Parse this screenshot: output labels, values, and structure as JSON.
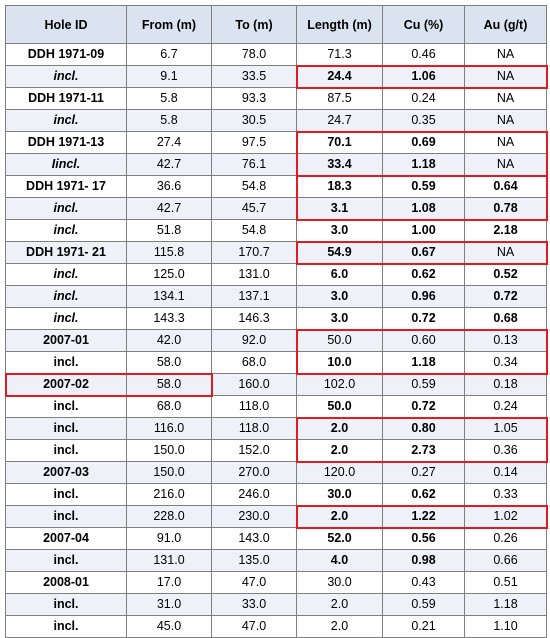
{
  "headers": [
    "Hole ID",
    "From (m)",
    "To (m)",
    "Length (m)",
    "Cu (%)",
    "Au (g/t)"
  ],
  "rows": [
    {
      "hole": "DDH 1971-09",
      "from": "6.7",
      "to": "78.0",
      "length": "71.3",
      "cu": "0.46",
      "au": "NA"
    },
    {
      "hole": "incl.",
      "from": "9.1",
      "to": "33.5",
      "length": "24.4",
      "cu": "1.06",
      "au": "NA"
    },
    {
      "hole": "DDH 1971-11",
      "from": "5.8",
      "to": "93.3",
      "length": "87.5",
      "cu": "0.24",
      "au": "NA"
    },
    {
      "hole": "incl.",
      "from": "5.8",
      "to": "30.5",
      "length": "24.7",
      "cu": "0.35",
      "au": "NA"
    },
    {
      "hole": "DDH 1971-13",
      "from": "27.4",
      "to": "97.5",
      "length": "70.1",
      "cu": "0.69",
      "au": "NA"
    },
    {
      "hole": "Iincl.",
      "from": "42.7",
      "to": "76.1",
      "length": "33.4",
      "cu": "1.18",
      "au": "NA"
    },
    {
      "hole": "DDH 1971- 17",
      "from": "36.6",
      "to": "54.8",
      "length": "18.3",
      "cu": "0.59",
      "au": "0.64"
    },
    {
      "hole": "incl.",
      "from": "42.7",
      "to": "45.7",
      "length": "3.1",
      "cu": "1.08",
      "au": "0.78"
    },
    {
      "hole": "incl.",
      "from": "51.8",
      "to": "54.8",
      "length": "3.0",
      "cu": "1.00",
      "au": "2.18"
    },
    {
      "hole": "DDH 1971- 21",
      "from": "115.8",
      "to": "170.7",
      "length": "54.9",
      "cu": "0.67",
      "au": "NA"
    },
    {
      "hole": "incl.",
      "from": "125.0",
      "to": "131.0",
      "length": "6.0",
      "cu": "0.62",
      "au": "0.52"
    },
    {
      "hole": "incl.",
      "from": "134.1",
      "to": "137.1",
      "length": "3.0",
      "cu": "0.96",
      "au": "0.72"
    },
    {
      "hole": "incl.",
      "from": "143.3",
      "to": "146.3",
      "length": "3.0",
      "cu": "0.72",
      "au": "0.68"
    },
    {
      "hole": "2007-01",
      "from": "42.0",
      "to": "92.0",
      "length": "50.0",
      "cu": "0.60",
      "au": "0.13"
    },
    {
      "hole": "incl.",
      "from": "58.0",
      "to": "68.0",
      "length": "10.0",
      "cu": "1.18",
      "au": "0.34"
    },
    {
      "hole": "2007-02",
      "from": "58.0",
      "to": "160.0",
      "length": "102.0",
      "cu": "0.59",
      "au": "0.18"
    },
    {
      "hole": "incl.",
      "from": "68.0",
      "to": "118.0",
      "length": "50.0",
      "cu": "0.72",
      "au": "0.24"
    },
    {
      "hole": "incl.",
      "from": "116.0",
      "to": "118.0",
      "length": "2.0",
      "cu": "0.80",
      "au": "1.05"
    },
    {
      "hole": "incl.",
      "from": "150.0",
      "to": "152.0",
      "length": "2.0",
      "cu": "2.73",
      "au": "0.36"
    },
    {
      "hole": "2007-03",
      "from": "150.0",
      "to": "270.0",
      "length": "120.0",
      "cu": "0.27",
      "au": "0.14"
    },
    {
      "hole": "incl.",
      "from": "216.0",
      "to": "246.0",
      "length": "30.0",
      "cu": "0.62",
      "au": "0.33"
    },
    {
      "hole": "incl.",
      "from": "228.0",
      "to": "230.0",
      "length": "2.0",
      "cu": "1.22",
      "au": "1.02"
    },
    {
      "hole": "2007-04",
      "from": "91.0",
      "to": "143.0",
      "length": "52.0",
      "cu": "0.56",
      "au": "0.26"
    },
    {
      "hole": "incl.",
      "from": "131.0",
      "to": "135.0",
      "length": "4.0",
      "cu": "0.98",
      "au": "0.66"
    },
    {
      "hole": "2008-01",
      "from": "17.0",
      "to": "47.0",
      "length": "30.0",
      "cu": "0.43",
      "au": "0.51"
    },
    {
      "hole": "incl.",
      "from": "31.0",
      "to": "33.0",
      "length": "2.0",
      "cu": "0.59",
      "au": "1.18"
    },
    {
      "hole": "incl.",
      "from": "45.0",
      "to": "47.0",
      "length": "2.0",
      "cu": "0.21",
      "au": "1.10"
    }
  ],
  "colors": {
    "header_bg": "#dbe3f1",
    "alt_row_bg": "#eef2f8",
    "grid": "#7f7f7f",
    "highlight": "#e01b22"
  }
}
